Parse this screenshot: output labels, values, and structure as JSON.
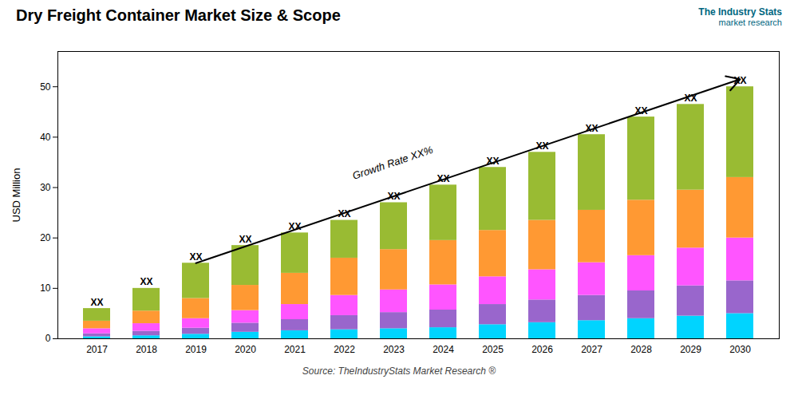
{
  "chart_data": {
    "type": "bar",
    "stacked": true,
    "title": "Dry Freight Container Market Size & Scope",
    "ylabel": "USD Million",
    "categories": [
      2017,
      2018,
      2019,
      2020,
      2021,
      2022,
      2023,
      2024,
      2025,
      2026,
      2027,
      2028,
      2029,
      2030
    ],
    "series": [
      {
        "color": "#00D4FF",
        "values": [
          0.4,
          0.6,
          0.9,
          1.3,
          1.6,
          1.8,
          2.0,
          2.2,
          2.8,
          3.2,
          3.6,
          4.0,
          4.5,
          5.0
        ]
      },
      {
        "color": "#9966CC",
        "values": [
          0.6,
          0.9,
          1.2,
          1.8,
          2.2,
          2.8,
          3.2,
          3.5,
          4.0,
          4.5,
          5.0,
          5.5,
          6.0,
          6.5
        ]
      },
      {
        "color": "#FF55FF",
        "values": [
          1.0,
          1.5,
          1.9,
          2.5,
          3.0,
          4.0,
          4.5,
          5.0,
          5.5,
          6.0,
          6.5,
          7.0,
          7.5,
          8.5
        ]
      },
      {
        "color": "#FF9933",
        "values": [
          1.5,
          2.5,
          4.0,
          5.0,
          6.2,
          7.4,
          8.0,
          8.8,
          9.2,
          9.8,
          10.4,
          11.0,
          11.5,
          12.0
        ]
      },
      {
        "color": "#99BB33",
        "values": [
          2.5,
          4.5,
          7.0,
          7.9,
          8.0,
          7.5,
          9.3,
          11.0,
          12.5,
          13.5,
          15.0,
          16.5,
          17.0,
          18.0
        ]
      }
    ],
    "total_labels": [
      "XX",
      "XX",
      "XX",
      "XX",
      "XX",
      "XX",
      "XX",
      "XX",
      "XX",
      "XX",
      "XX",
      "XX",
      "XX",
      "XX"
    ],
    "arrow": {
      "x1": 2019,
      "y1": 15.0,
      "x2": 2030,
      "y2": 51.5
    },
    "annotations": [
      {
        "text": "Growth Rate XX%",
        "x": 2023,
        "y": 34.25
      }
    ],
    "source": "Source: TheIndustryStats Market Research ®",
    "logo": [
      "The Industry Stats",
      "market research"
    ],
    "ylim": [
      0,
      57
    ],
    "yticks": [
      0,
      10,
      20,
      30,
      40,
      50
    ],
    "grid": false
  }
}
